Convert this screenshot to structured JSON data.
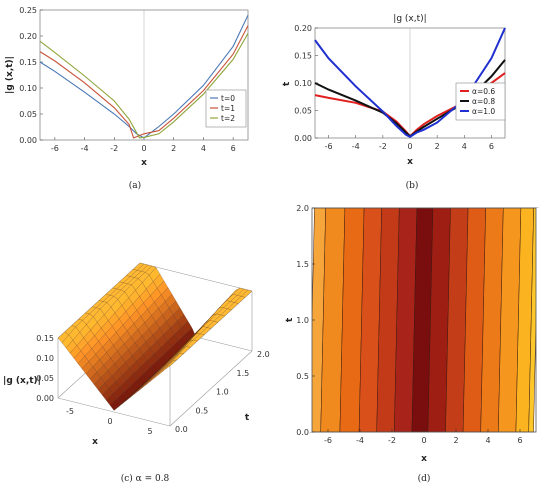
{
  "figure": {
    "panels": [
      {
        "id": "a",
        "caption": "(a)"
      },
      {
        "id": "b",
        "caption": "(b)"
      },
      {
        "id": "c",
        "caption": "(c) α = 0.8"
      },
      {
        "id": "d",
        "caption": "(d)"
      }
    ]
  },
  "chart_data": [
    {
      "type": "line",
      "panel": "a",
      "title": "",
      "xlabel": "x",
      "ylabel": "|g (x,t)|",
      "xlim": [
        -7,
        7
      ],
      "ylim": [
        0,
        0.25
      ],
      "xticks": [
        "-6",
        "-4",
        "-2",
        "0",
        "2",
        "4",
        "6"
      ],
      "yticks": [
        "0.00",
        "0.05",
        "0.10",
        "0.15",
        "0.20",
        "0.25"
      ],
      "legend_position": "right",
      "series": [
        {
          "name": "t=0",
          "color": "#4a78b5",
          "x": [
            -7,
            -6,
            -4,
            -2,
            -1,
            -0.5,
            0,
            1,
            2,
            4,
            6,
            7
          ],
          "y": [
            0.15,
            0.132,
            0.092,
            0.05,
            0.026,
            0.012,
            0.004,
            0.026,
            0.05,
            0.105,
            0.18,
            0.24
          ]
        },
        {
          "name": "t=1",
          "color": "#c8543a",
          "x": [
            -7,
            -6,
            -4,
            -2,
            -1,
            -0.7,
            0,
            1,
            2,
            4,
            6,
            7
          ],
          "y": [
            0.17,
            0.152,
            0.11,
            0.062,
            0.03,
            0.004,
            0.012,
            0.018,
            0.042,
            0.095,
            0.165,
            0.22
          ]
        },
        {
          "name": "t=2",
          "color": "#8fa53a",
          "x": [
            -7,
            -6,
            -4,
            -2,
            -1,
            -0.3,
            0,
            1,
            2,
            4,
            6,
            7
          ],
          "y": [
            0.19,
            0.168,
            0.123,
            0.075,
            0.04,
            0.004,
            0.005,
            0.012,
            0.035,
            0.088,
            0.155,
            0.205
          ]
        }
      ]
    },
    {
      "type": "line",
      "panel": "b",
      "title": "|g (x,t)|",
      "xlabel": "x",
      "ylabel": "t",
      "xlim": [
        -7,
        7
      ],
      "ylim": [
        0,
        0.2
      ],
      "xticks": [
        "-6",
        "-4",
        "-2",
        "0",
        "2",
        "4",
        "6"
      ],
      "yticks": [
        "0.00",
        "0.05",
        "0.10",
        "0.15",
        "0.20"
      ],
      "legend_position": "right",
      "series": [
        {
          "name": "α=0.6",
          "color": "#e02020",
          "x": [
            -7,
            -6,
            -4,
            -2,
            -1,
            -0.3,
            0,
            0.5,
            1,
            2,
            4,
            6,
            7
          ],
          "y": [
            0.078,
            0.073,
            0.064,
            0.048,
            0.03,
            0.012,
            0.003,
            0.015,
            0.025,
            0.04,
            0.065,
            0.1,
            0.118
          ]
        },
        {
          "name": "α=0.8",
          "color": "#111111",
          "x": [
            -7,
            -6,
            -4,
            -2,
            -1,
            -0.3,
            0,
            0.5,
            1,
            2,
            4,
            6,
            7
          ],
          "y": [
            0.1,
            0.088,
            0.068,
            0.046,
            0.027,
            0.01,
            0.003,
            0.012,
            0.02,
            0.035,
            0.064,
            0.112,
            0.142
          ]
        },
        {
          "name": "α=1.0",
          "color": "#1f2fd0",
          "x": [
            -7,
            -6,
            -4,
            -2,
            -1,
            -0.3,
            0,
            0.5,
            1,
            2,
            4,
            6,
            7
          ],
          "y": [
            0.178,
            0.145,
            0.094,
            0.048,
            0.022,
            0.006,
            0.002,
            0.01,
            0.015,
            0.028,
            0.07,
            0.145,
            0.2
          ]
        }
      ]
    },
    {
      "type": "surface",
      "panel": "c",
      "zlabel": "|g (x,t)|",
      "xlabel": "x",
      "ylabel": "t",
      "xticks": [
        "-5",
        "0",
        "5"
      ],
      "yticks": [
        "0.0",
        "0.5",
        "1.0",
        "1.5",
        "2.0"
      ],
      "zticks": [
        "0.00",
        "0.05",
        "0.10",
        "0.15"
      ],
      "xlim": [
        -7,
        7
      ],
      "ylim": [
        0,
        2
      ],
      "zlim": [
        0,
        0.15
      ]
    },
    {
      "type": "heatmap",
      "panel": "d",
      "xlabel": "x",
      "ylabel": "t",
      "xlim": [
        -7,
        7
      ],
      "ylim": [
        0,
        2
      ],
      "xticks": [
        "-6",
        "-4",
        "-2",
        "0",
        "2",
        "4",
        "6"
      ],
      "yticks": [
        "0.0",
        "0.5",
        "1.0",
        "1.5",
        "2.0"
      ],
      "band_edges_x": [
        -7,
        -6.3,
        -5.1,
        -3.9,
        -2.8,
        -1.7,
        -0.6,
        0.4,
        1.5,
        2.6,
        3.7,
        4.8,
        5.9,
        6.7,
        7
      ],
      "band_colors": [
        "#f5a53a",
        "#f08a1e",
        "#e96a14",
        "#d9501a",
        "#c23a18",
        "#a8241a",
        "#7a0e0e",
        "#9e1e14",
        "#c33e18",
        "#df5c16",
        "#ec7a18",
        "#f5961f",
        "#fbb31f",
        "#fdc72a"
      ]
    }
  ]
}
